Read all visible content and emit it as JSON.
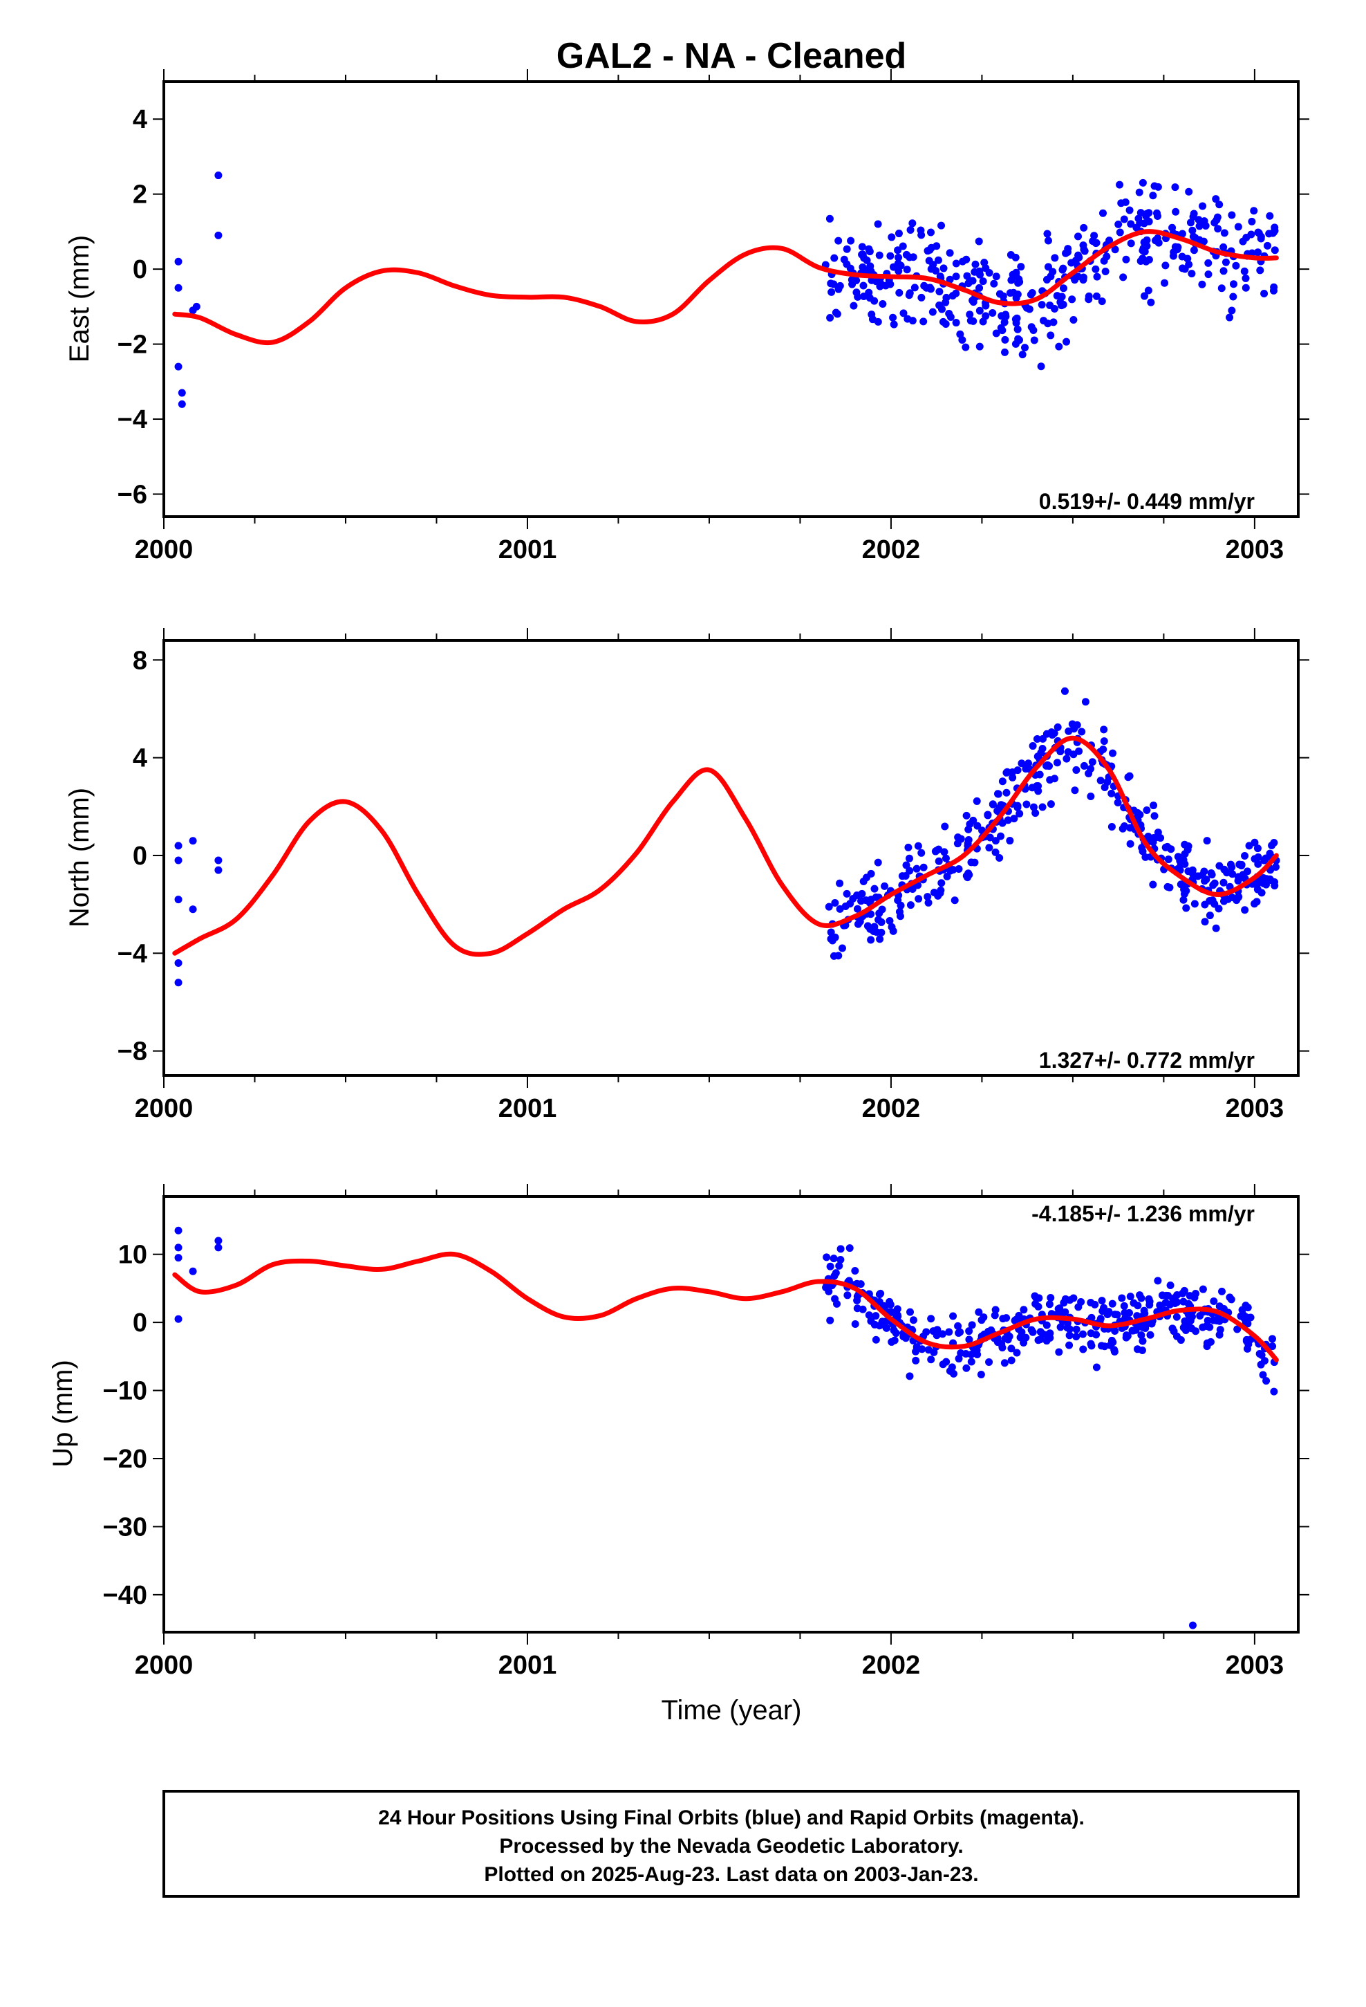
{
  "chart_data": {
    "title": "GAL2  - NA - Cleaned",
    "xlabel": "Time (year)",
    "xlim": [
      2000.0,
      2003.12
    ],
    "x_ticks": [
      "2000",
      "2001",
      "2002",
      "2003"
    ],
    "colors": {
      "final_orbits": "#0000ff",
      "model": "#ff0000"
    },
    "panels": [
      {
        "type": "scatter",
        "ylabel": "East (mm)",
        "ylim": [
          -6.6,
          5.0
        ],
        "y_ticks": [
          4,
          2,
          0,
          -2,
          -4,
          -6
        ],
        "rate_label": "0.519+/- 0.449 mm/yr",
        "model": {
          "name": "model",
          "x": [
            2000.03,
            2000.1,
            2000.2,
            2000.3,
            2000.4,
            2000.5,
            2000.6,
            2000.7,
            2000.8,
            2000.9,
            2001.0,
            2001.1,
            2001.2,
            2001.3,
            2001.4,
            2001.5,
            2001.6,
            2001.7,
            2001.8,
            2001.9,
            2002.0,
            2002.1,
            2002.2,
            2002.3,
            2002.4,
            2002.5,
            2002.6,
            2002.7,
            2002.8,
            2002.9,
            2003.0,
            2003.06
          ],
          "y": [
            -1.2,
            -1.3,
            -1.75,
            -1.95,
            -1.4,
            -0.5,
            -0.05,
            -0.1,
            -0.45,
            -0.7,
            -0.75,
            -0.75,
            -1.0,
            -1.4,
            -1.2,
            -0.3,
            0.4,
            0.55,
            0.05,
            -0.15,
            -0.2,
            -0.25,
            -0.55,
            -0.9,
            -0.8,
            -0.1,
            0.6,
            1.0,
            0.8,
            0.45,
            0.3,
            0.3
          ]
        },
        "points": [
          {
            "x": 2000.04,
            "y": -0.5
          },
          {
            "x": 2000.04,
            "y": 0.2
          },
          {
            "x": 2000.04,
            "y": -2.6
          },
          {
            "x": 2000.05,
            "y": -3.3
          },
          {
            "x": 2000.05,
            "y": -3.6
          },
          {
            "x": 2000.08,
            "y": -1.1
          },
          {
            "x": 2000.09,
            "y": -1.0
          },
          {
            "x": 2000.15,
            "y": 2.5
          },
          {
            "x": 2000.15,
            "y": 0.9
          }
        ]
      },
      {
        "type": "scatter",
        "ylabel": "North (mm)",
        "ylim": [
          -9.0,
          8.8
        ],
        "y_ticks": [
          8,
          4,
          0,
          -4,
          -8
        ],
        "rate_label": "1.327+/- 0.772 mm/yr",
        "model": {
          "name": "model",
          "x": [
            2000.03,
            2000.1,
            2000.2,
            2000.3,
            2000.4,
            2000.5,
            2000.6,
            2000.7,
            2000.8,
            2000.9,
            2001.0,
            2001.1,
            2001.2,
            2001.3,
            2001.4,
            2001.5,
            2001.6,
            2001.7,
            2001.8,
            2001.9,
            2002.0,
            2002.1,
            2002.2,
            2002.3,
            2002.4,
            2002.5,
            2002.6,
            2002.7,
            2002.8,
            2002.9,
            2003.0,
            2003.06
          ],
          "y": [
            -4.0,
            -3.4,
            -2.6,
            -0.8,
            1.4,
            2.2,
            1.0,
            -1.6,
            -3.7,
            -4.0,
            -3.2,
            -2.2,
            -1.4,
            0.1,
            2.2,
            3.5,
            1.5,
            -1.2,
            -2.8,
            -2.5,
            -1.6,
            -0.8,
            0.0,
            1.6,
            3.6,
            4.8,
            3.5,
            0.5,
            -0.9,
            -1.6,
            -0.9,
            0.0
          ]
        },
        "points": [
          {
            "x": 2000.04,
            "y": 0.4
          },
          {
            "x": 2000.04,
            "y": -0.2
          },
          {
            "x": 2000.04,
            "y": -1.8
          },
          {
            "x": 2000.04,
            "y": -4.4
          },
          {
            "x": 2000.04,
            "y": -5.2
          },
          {
            "x": 2000.08,
            "y": 0.6
          },
          {
            "x": 2000.08,
            "y": -2.2
          },
          {
            "x": 2000.15,
            "y": -0.2
          },
          {
            "x": 2000.15,
            "y": -0.6
          }
        ]
      },
      {
        "type": "scatter",
        "ylabel": "Up (mm)",
        "ylim": [
          -45.5,
          18.5
        ],
        "y_ticks": [
          10,
          0,
          -10,
          -20,
          -30,
          -40
        ],
        "rate_label": "-4.185+/- 1.236 mm/yr",
        "model": {
          "name": "model",
          "x": [
            2000.03,
            2000.1,
            2000.2,
            2000.3,
            2000.4,
            2000.5,
            2000.6,
            2000.7,
            2000.8,
            2000.9,
            2001.0,
            2001.1,
            2001.2,
            2001.3,
            2001.4,
            2001.5,
            2001.6,
            2001.7,
            2001.8,
            2001.9,
            2002.0,
            2002.1,
            2002.2,
            2002.3,
            2002.4,
            2002.5,
            2002.6,
            2002.7,
            2002.8,
            2002.9,
            2003.0,
            2003.06
          ],
          "y": [
            7.0,
            4.5,
            5.5,
            8.5,
            9.0,
            8.3,
            7.8,
            9.0,
            10.0,
            7.5,
            3.5,
            0.8,
            1.0,
            3.5,
            5.0,
            4.5,
            3.5,
            4.5,
            6.0,
            5.0,
            0.5,
            -3.0,
            -3.5,
            -1.5,
            0.5,
            0.5,
            -0.5,
            0.5,
            1.8,
            1.5,
            -2.0,
            -5.5
          ]
        },
        "points": [
          {
            "x": 2000.04,
            "y": 13.5
          },
          {
            "x": 2000.04,
            "y": 11.0
          },
          {
            "x": 2000.04,
            "y": 9.5
          },
          {
            "x": 2000.04,
            "y": 0.5
          },
          {
            "x": 2000.08,
            "y": 7.5
          },
          {
            "x": 2000.15,
            "y": 12.0
          },
          {
            "x": 2000.15,
            "y": 11.0
          },
          {
            "x": 2002.83,
            "y": -44.5
          }
        ]
      }
    ]
  },
  "footer": {
    "line1": "24 Hour Positions Using Final Orbits (blue) and Rapid Orbits (magenta).",
    "line2": "Processed by the Nevada Geodetic Laboratory.",
    "line3": "Plotted on 2025-Aug-23. Last data on 2003-Jan-23."
  }
}
